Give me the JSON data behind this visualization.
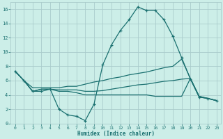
{
  "xlabel": "Humidex (Indice chaleur)",
  "bg_color": "#cceee8",
  "grid_color": "#aacccc",
  "line_color": "#1a7070",
  "xlim": [
    -0.5,
    23.5
  ],
  "ylim": [
    0,
    17
  ],
  "xticks": [
    0,
    1,
    2,
    3,
    4,
    5,
    6,
    7,
    8,
    9,
    10,
    11,
    12,
    13,
    14,
    15,
    16,
    17,
    18,
    19,
    20,
    21,
    22,
    23
  ],
  "yticks": [
    0,
    2,
    4,
    6,
    8,
    10,
    12,
    14,
    16
  ],
  "series": [
    {
      "x": [
        0,
        1,
        2,
        3,
        4,
        5,
        6,
        7,
        8,
        9,
        10,
        11,
        12,
        13,
        14,
        15,
        16,
        17,
        18,
        19,
        20,
        21,
        22,
        23
      ],
      "y": [
        7.3,
        6.0,
        4.5,
        4.5,
        4.8,
        2.0,
        1.2,
        1.0,
        0.4,
        2.7,
        8.2,
        11.0,
        13.0,
        14.5,
        16.3,
        15.8,
        15.8,
        14.5,
        12.2,
        9.2,
        6.2,
        3.7,
        3.5,
        3.2
      ],
      "marker": true
    },
    {
      "x": [
        0,
        1,
        2,
        3,
        4,
        5,
        6,
        7,
        8,
        9,
        10,
        11,
        12,
        13,
        14,
        15,
        16,
        17,
        18,
        19,
        20,
        21,
        22,
        23
      ],
      "y": [
        7.3,
        6.0,
        5.0,
        5.0,
        5.0,
        5.0,
        5.2,
        5.2,
        5.5,
        5.8,
        6.0,
        6.3,
        6.5,
        6.8,
        7.0,
        7.2,
        7.5,
        7.8,
        8.0,
        9.0,
        6.3,
        3.7,
        3.5,
        3.2
      ],
      "marker": false
    },
    {
      "x": [
        0,
        1,
        2,
        3,
        4,
        5,
        6,
        7,
        8,
        9,
        10,
        11,
        12,
        13,
        14,
        15,
        16,
        17,
        18,
        19,
        20,
        21,
        22,
        23
      ],
      "y": [
        7.3,
        6.0,
        4.5,
        4.8,
        4.8,
        4.7,
        4.7,
        4.7,
        4.5,
        4.5,
        4.6,
        4.8,
        5.0,
        5.2,
        5.4,
        5.5,
        5.7,
        5.9,
        6.0,
        6.2,
        6.3,
        3.8,
        3.5,
        3.2
      ],
      "marker": false
    },
    {
      "x": [
        0,
        1,
        2,
        3,
        4,
        5,
        6,
        7,
        8,
        9,
        10,
        11,
        12,
        13,
        14,
        15,
        16,
        17,
        18,
        19,
        20,
        21,
        22,
        23
      ],
      "y": [
        7.3,
        6.0,
        4.5,
        4.8,
        4.8,
        4.5,
        4.5,
        4.3,
        4.0,
        4.0,
        4.0,
        4.0,
        4.0,
        4.0,
        4.0,
        4.0,
        3.8,
        3.8,
        3.8,
        3.8,
        6.3,
        3.8,
        3.5,
        3.2
      ],
      "marker": false
    }
  ]
}
